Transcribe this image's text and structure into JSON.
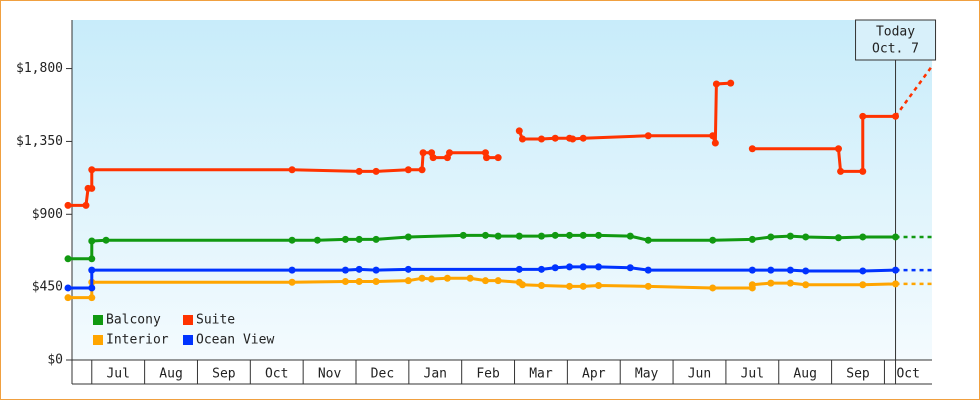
{
  "chart_data": {
    "type": "line",
    "xlim": [
      6.55,
      22.9
    ],
    "xticks": [
      {
        "value": 7,
        "label": "Jul"
      },
      {
        "value": 8,
        "label": "Aug"
      },
      {
        "value": 9,
        "label": "Sep"
      },
      {
        "value": 10,
        "label": "Oct"
      },
      {
        "value": 11,
        "label": "Nov"
      },
      {
        "value": 12,
        "label": "Dec"
      },
      {
        "value": 13,
        "label": "Jan"
      },
      {
        "value": 14,
        "label": "Feb"
      },
      {
        "value": 15,
        "label": "Mar"
      },
      {
        "value": 16,
        "label": "Apr"
      },
      {
        "value": 17,
        "label": "May"
      },
      {
        "value": 18,
        "label": "Jun"
      },
      {
        "value": 19,
        "label": "Jul"
      },
      {
        "value": 20,
        "label": "Aug"
      },
      {
        "value": 21,
        "label": "Sep"
      },
      {
        "value": 22,
        "label": "Oct"
      }
    ],
    "ylim": [
      0,
      2100
    ],
    "yticks": [
      {
        "value": 0,
        "label": "$0"
      },
      {
        "value": 450,
        "label": "$450"
      },
      {
        "value": 900,
        "label": "$900"
      },
      {
        "value": 1350,
        "label": "$1,350"
      },
      {
        "value": 1800,
        "label": "$1,800"
      }
    ],
    "legend": "bottom-left",
    "annotation": {
      "lines": [
        "Today",
        "Oct. 7"
      ],
      "x": 22.21
    },
    "series": [
      {
        "name": "Balcony",
        "color": "#119911",
        "x": [
          6.55,
          7.0,
          7.0,
          7.27,
          10.79,
          11.27,
          11.8,
          12.06,
          12.38,
          12.99,
          14.03,
          14.45,
          14.69,
          15.09,
          15.51,
          15.77,
          16.04,
          16.3,
          16.59,
          17.19,
          17.53,
          18.75,
          19.5,
          19.85,
          20.22,
          20.51,
          21.13,
          21.59,
          22.21
        ],
        "values": [
          625,
          625,
          735,
          740,
          740,
          740,
          745,
          745,
          745,
          760,
          770,
          770,
          765,
          765,
          765,
          770,
          770,
          770,
          770,
          765,
          740,
          740,
          745,
          760,
          765,
          760,
          755,
          760,
          760
        ],
        "projection": 760
      },
      {
        "name": "Suite",
        "color": "#ff3300",
        "x": [
          6.55,
          6.89,
          6.93,
          7.0,
          7.0,
          10.79,
          12.06,
          12.38,
          12.99,
          13.25,
          13.27,
          13.43,
          13.46,
          13.73,
          13.77,
          14.45,
          14.47,
          14.69,
          null,
          15.09,
          15.15,
          15.51,
          15.77,
          16.04,
          16.1,
          16.3,
          17.53,
          18.75,
          18.8,
          18.82,
          19.09,
          null,
          19.5,
          21.13,
          21.17,
          21.59,
          21.59,
          22.21
        ],
        "values": [
          955,
          955,
          1060,
          1060,
          1175,
          1175,
          1165,
          1165,
          1175,
          1175,
          1280,
          1280,
          1250,
          1250,
          1280,
          1280,
          1250,
          1250,
          null,
          1415,
          1365,
          1365,
          1370,
          1370,
          1365,
          1370,
          1385,
          1385,
          1340,
          1705,
          1710,
          null,
          1305,
          1305,
          1165,
          1165,
          1505,
          1505
        ],
        "projection": 1815
      },
      {
        "name": "Interior",
        "color": "#ffa500",
        "x": [
          6.55,
          7.0,
          7.0,
          10.79,
          11.8,
          12.06,
          12.38,
          12.99,
          13.25,
          13.43,
          13.73,
          14.16,
          14.45,
          14.69,
          15.09,
          15.15,
          15.51,
          16.04,
          16.3,
          16.59,
          17.53,
          18.75,
          19.5,
          19.5,
          19.85,
          20.22,
          20.51,
          21.59,
          22.21
        ],
        "values": [
          385,
          385,
          480,
          480,
          485,
          485,
          485,
          490,
          505,
          500,
          505,
          505,
          490,
          490,
          480,
          465,
          460,
          455,
          455,
          460,
          455,
          445,
          445,
          465,
          475,
          475,
          465,
          465,
          470
        ],
        "projection": 470
      },
      {
        "name": "Ocean View",
        "color": "#0033ff",
        "x": [
          6.55,
          7.0,
          7.0,
          10.79,
          11.8,
          12.06,
          12.38,
          12.99,
          15.09,
          15.51,
          15.77,
          16.04,
          16.3,
          16.59,
          17.19,
          17.53,
          19.5,
          19.85,
          20.22,
          20.51,
          21.59,
          22.21
        ],
        "values": [
          445,
          445,
          555,
          555,
          555,
          560,
          555,
          560,
          560,
          560,
          570,
          575,
          575,
          575,
          570,
          555,
          555,
          555,
          555,
          550,
          550,
          555
        ],
        "projection": 555
      }
    ]
  }
}
